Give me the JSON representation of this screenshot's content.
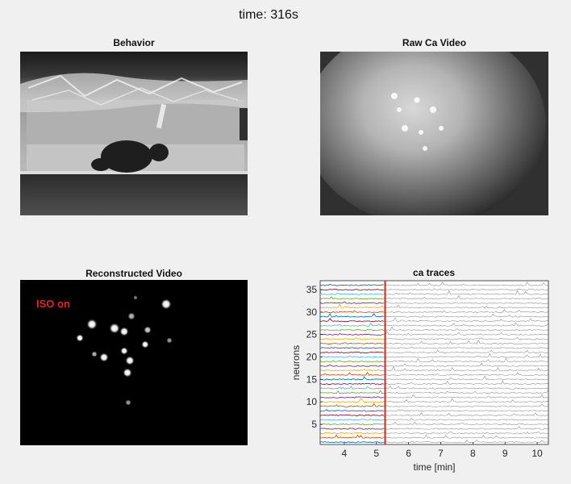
{
  "figure": {
    "suptitle": "time: 316s",
    "panels": {
      "behavior_title": "Behavior",
      "raw_title": "Raw Ca Video",
      "recon_title": "Reconstructed Video",
      "recon_overlay": "ISO on"
    }
  },
  "chart_data": {
    "type": "line",
    "title": "ca traces",
    "xlabel": "time [min]",
    "ylabel": "neurons",
    "xlim": [
      3.25,
      10.35
    ],
    "ylim": [
      0.5,
      37.0
    ],
    "xticks": [
      4,
      5,
      6,
      7,
      8,
      9,
      10
    ],
    "yticks": [
      5,
      10,
      15,
      20,
      25,
      30,
      35
    ],
    "neuron_count": 36,
    "current_time_min": 5.27,
    "current_time_color": "#c8281e",
    "past_trace_colors": [
      "#0072bd",
      "#d95319",
      "#edb120",
      "#7e2f8e",
      "#77ac30",
      "#4dbeee",
      "#a2142f"
    ],
    "future_trace_color": "#a0a0a0",
    "grid": false
  },
  "colors": {
    "background": "#f0f0f0",
    "iso_label": "#e0281e"
  }
}
